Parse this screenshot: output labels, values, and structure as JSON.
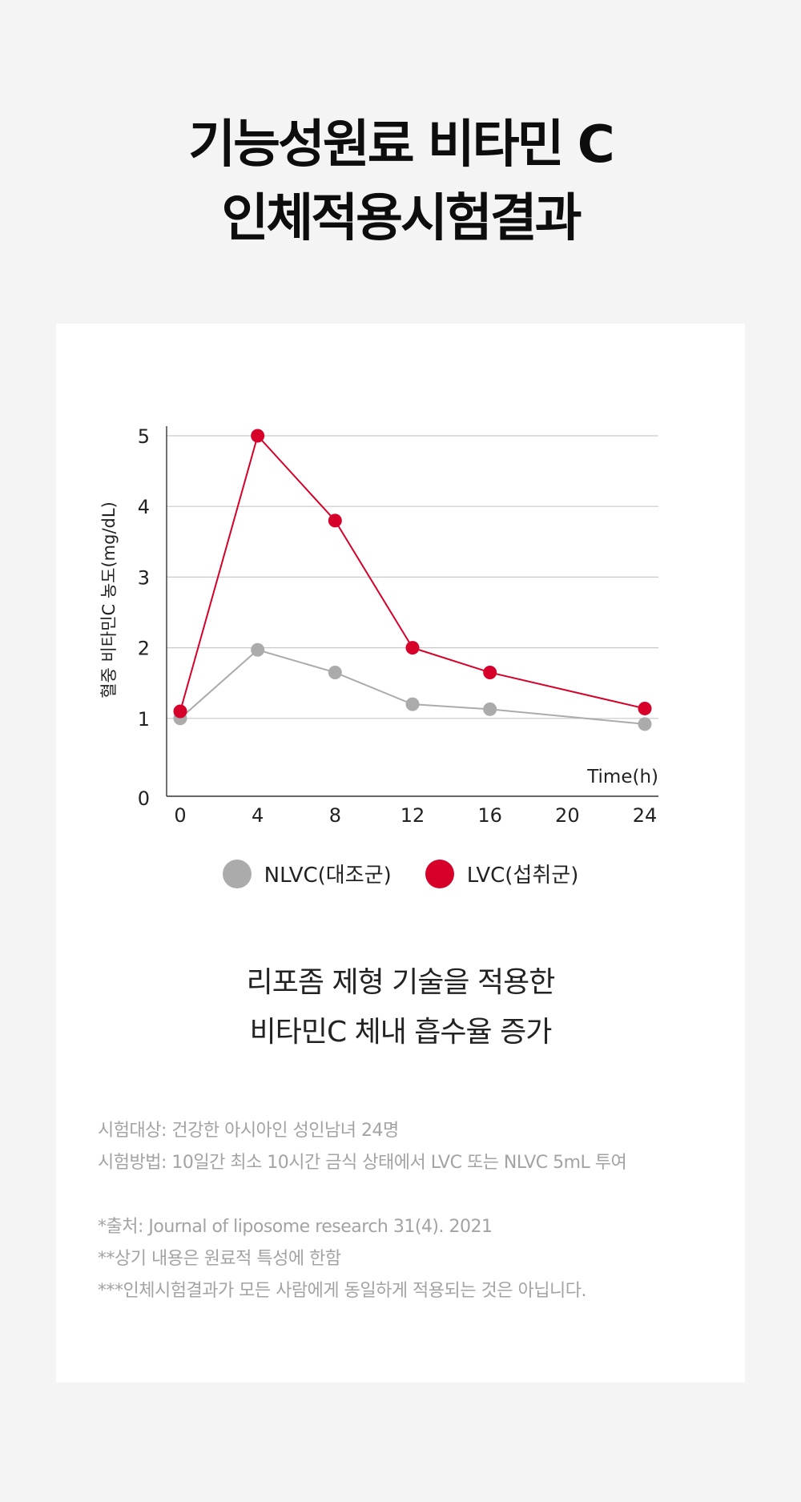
{
  "title": {
    "line1": "기능성원료 비타민 C",
    "line2": "인체적용시험결과"
  },
  "chart_data": {
    "type": "line",
    "x": [
      0,
      4,
      8,
      12,
      16,
      20,
      24
    ],
    "x_ticks": [
      "0",
      "4",
      "8",
      "12",
      "16",
      "20",
      "24"
    ],
    "y_ticks": [
      "0",
      "1",
      "2",
      "3",
      "4",
      "5"
    ],
    "ylim": [
      0,
      5
    ],
    "xlim": [
      0,
      24
    ],
    "xlabel": "Time(h)",
    "ylabel": "혈중 비타민C 농도(mg/dL)",
    "grid": true,
    "legend_position": "bottom-center",
    "series": [
      {
        "name": "NLVC(대조군)",
        "color": "#ababab",
        "points": [
          [
            0,
            1.0
          ],
          [
            4,
            1.97
          ],
          [
            8,
            1.65
          ],
          [
            12,
            1.2
          ],
          [
            16,
            1.13
          ],
          [
            24,
            0.92
          ]
        ]
      },
      {
        "name": "LVC(섭취군)",
        "color": "#d6002a",
        "points": [
          [
            0,
            1.1
          ],
          [
            4,
            5.0
          ],
          [
            8,
            3.8
          ],
          [
            12,
            2.0
          ],
          [
            16,
            1.65
          ],
          [
            24,
            1.14
          ]
        ]
      }
    ]
  },
  "legend": [
    {
      "label": "NLVC(대조군)",
      "color": "#ababab"
    },
    {
      "label": "LVC(섭취군)",
      "color": "#d6002a"
    }
  ],
  "headline": {
    "line1": "리포좀 제형 기술을 적용한",
    "line2": "비타민C 체내 흡수율 증가"
  },
  "notes": {
    "subject": "시험대상: 건강한 아시아인 성인남녀 24명",
    "method": "시험방법: 10일간 최소 10시간 금식 상태에서 LVC 또는 NLVC 5mL 투여",
    "source": "*출처: Journal of liposome research 31(4). 2021",
    "note2": "**상기 내용은 원료적 특성에 한함",
    "note3": "***인체시험결과가 모든 사람에게 동일하게 적용되는 것은 아닙니다."
  }
}
